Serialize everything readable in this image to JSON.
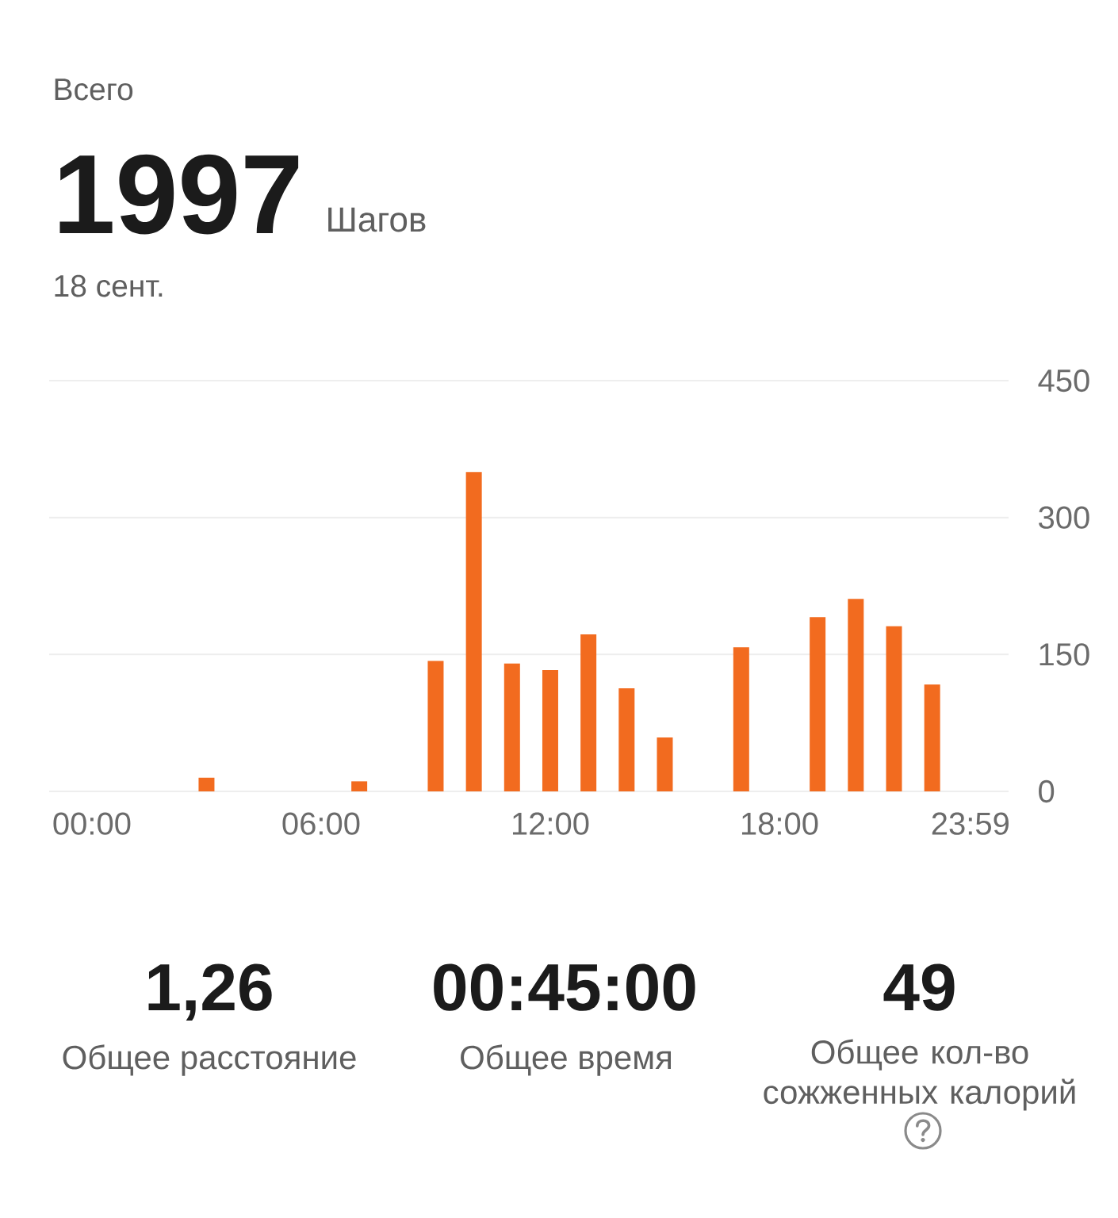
{
  "chart_data": {
    "type": "bar",
    "title": "Всего",
    "annotations": [
      "1997",
      "Шагов",
      "18 сент.",
      "1,26",
      "Общее расстояние",
      "00:45:00",
      "Общее время",
      "49",
      "Общее кол-во сожженных калорий"
    ],
    "categories": [
      "00:00",
      null,
      null,
      null,
      null,
      null,
      "06:00",
      null,
      null,
      null,
      null,
      null,
      "12:00",
      null,
      null,
      null,
      null,
      null,
      "18:00",
      null,
      null,
      null,
      null,
      "23:59"
    ],
    "values": [
      null,
      null,
      null,
      15,
      null,
      null,
      null,
      11,
      null,
      143,
      350,
      140,
      133,
      172,
      113,
      59,
      null,
      158,
      null,
      191,
      211,
      181,
      117,
      null
    ],
    "color": "#f26b1f",
    "ylim": [
      0,
      450
    ],
    "yticks": [
      0,
      150,
      300,
      450
    ],
    "grid": "y"
  }
}
